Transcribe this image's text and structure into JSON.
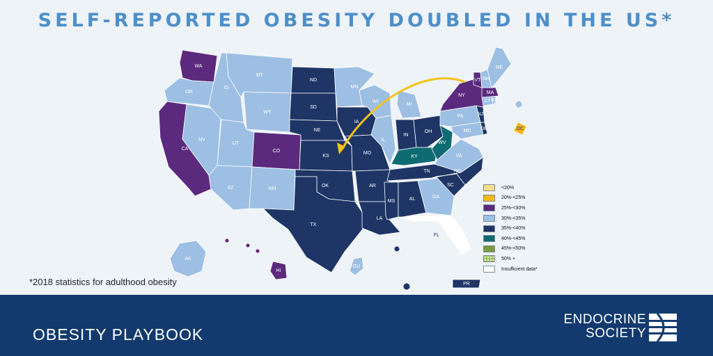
{
  "title": "SELF-REPORTED OBESITY DOUBLED IN THE US*",
  "footnote": "*2018 statistics for adulthood obesity",
  "footer": {
    "title": "OBESITY PLAYBOOK",
    "logo_line1": "ENDOCRINE",
    "logo_line2": "SOCIETY"
  },
  "colors": {
    "lt20": "#f7dc8a",
    "c20_25": "#f4b61a",
    "c25_30": "#5b2a7e",
    "c30_35": "#9dbfe3",
    "c35_40": "#1f3566",
    "c40_45": "#0f6b72",
    "c45_50": "#7a9a3c",
    "c50plus": "#9bbf59",
    "insufficient": "#ffffff",
    "arrow": "#f4c21a",
    "background": "#eef3f8",
    "footer": "#123a6e",
    "title": "#4d8fc9"
  },
  "legend": [
    {
      "label": "<20%",
      "color": "#f7dc8a"
    },
    {
      "label": "20%-<25%",
      "color": "#f4b61a"
    },
    {
      "label": "25%-<30%",
      "color": "#5b2a7e"
    },
    {
      "label": "30%-<35%",
      "color": "#9dbfe3"
    },
    {
      "label": "35%-<40%",
      "color": "#1f3566"
    },
    {
      "label": "40%-<45%",
      "color": "#0f6b72"
    },
    {
      "label": "45%-<50%",
      "color": "#7a9a3c"
    },
    {
      "label": "50% +",
      "color": "#9bbf59"
    },
    {
      "label": "Insufficient data*",
      "color": "#ffffff"
    }
  ],
  "states": {
    "WA": "25%-<30%",
    "OR": "30%-<35%",
    "CA": "25%-<30%",
    "NV": "30%-<35%",
    "ID": "30%-<35%",
    "MT": "30%-<35%",
    "WY": "30%-<35%",
    "UT": "30%-<35%",
    "AZ": "30%-<35%",
    "CO": "25%-<30%",
    "NM": "30%-<35%",
    "ND": "35%-<40%",
    "SD": "35%-<40%",
    "NE": "35%-<40%",
    "KS": "35%-<40%",
    "OK": "35%-<40%",
    "TX": "35%-<40%",
    "MN": "30%-<35%",
    "IA": "35%-<40%",
    "MO": "35%-<40%",
    "AR": "35%-<40%",
    "LA": "35%-<40%",
    "WI": "30%-<35%",
    "IL": "30%-<35%",
    "MI": "30%-<35%",
    "IN": "35%-<40%",
    "OH": "35%-<40%",
    "KY": "40%-<45%",
    "WV": "40%-<45%",
    "TN": "35%-<40%",
    "MS": "35%-<40%",
    "AL": "35%-<40%",
    "GA": "30%-<35%",
    "FL": "Insufficient data*",
    "SC": "35%-<40%",
    "NC": "35%-<40%",
    "VA": "30%-<35%",
    "PA": "30%-<35%",
    "NY": "25%-<30%",
    "ME": "30%-<35%",
    "VT": "25%-<30%",
    "NH": "30%-<35%",
    "MA": "25%-<30%",
    "RI": "30%-<35%",
    "CT": "30%-<35%",
    "NJ": "35%-<40%",
    "DE": "35%-<40%",
    "MD": "30%-<35%",
    "DC": "20%-<25%",
    "AK": "30%-<35%",
    "HI": "25%-<30%",
    "GU": "30%-<35%",
    "PR": "35%-<40%"
  }
}
